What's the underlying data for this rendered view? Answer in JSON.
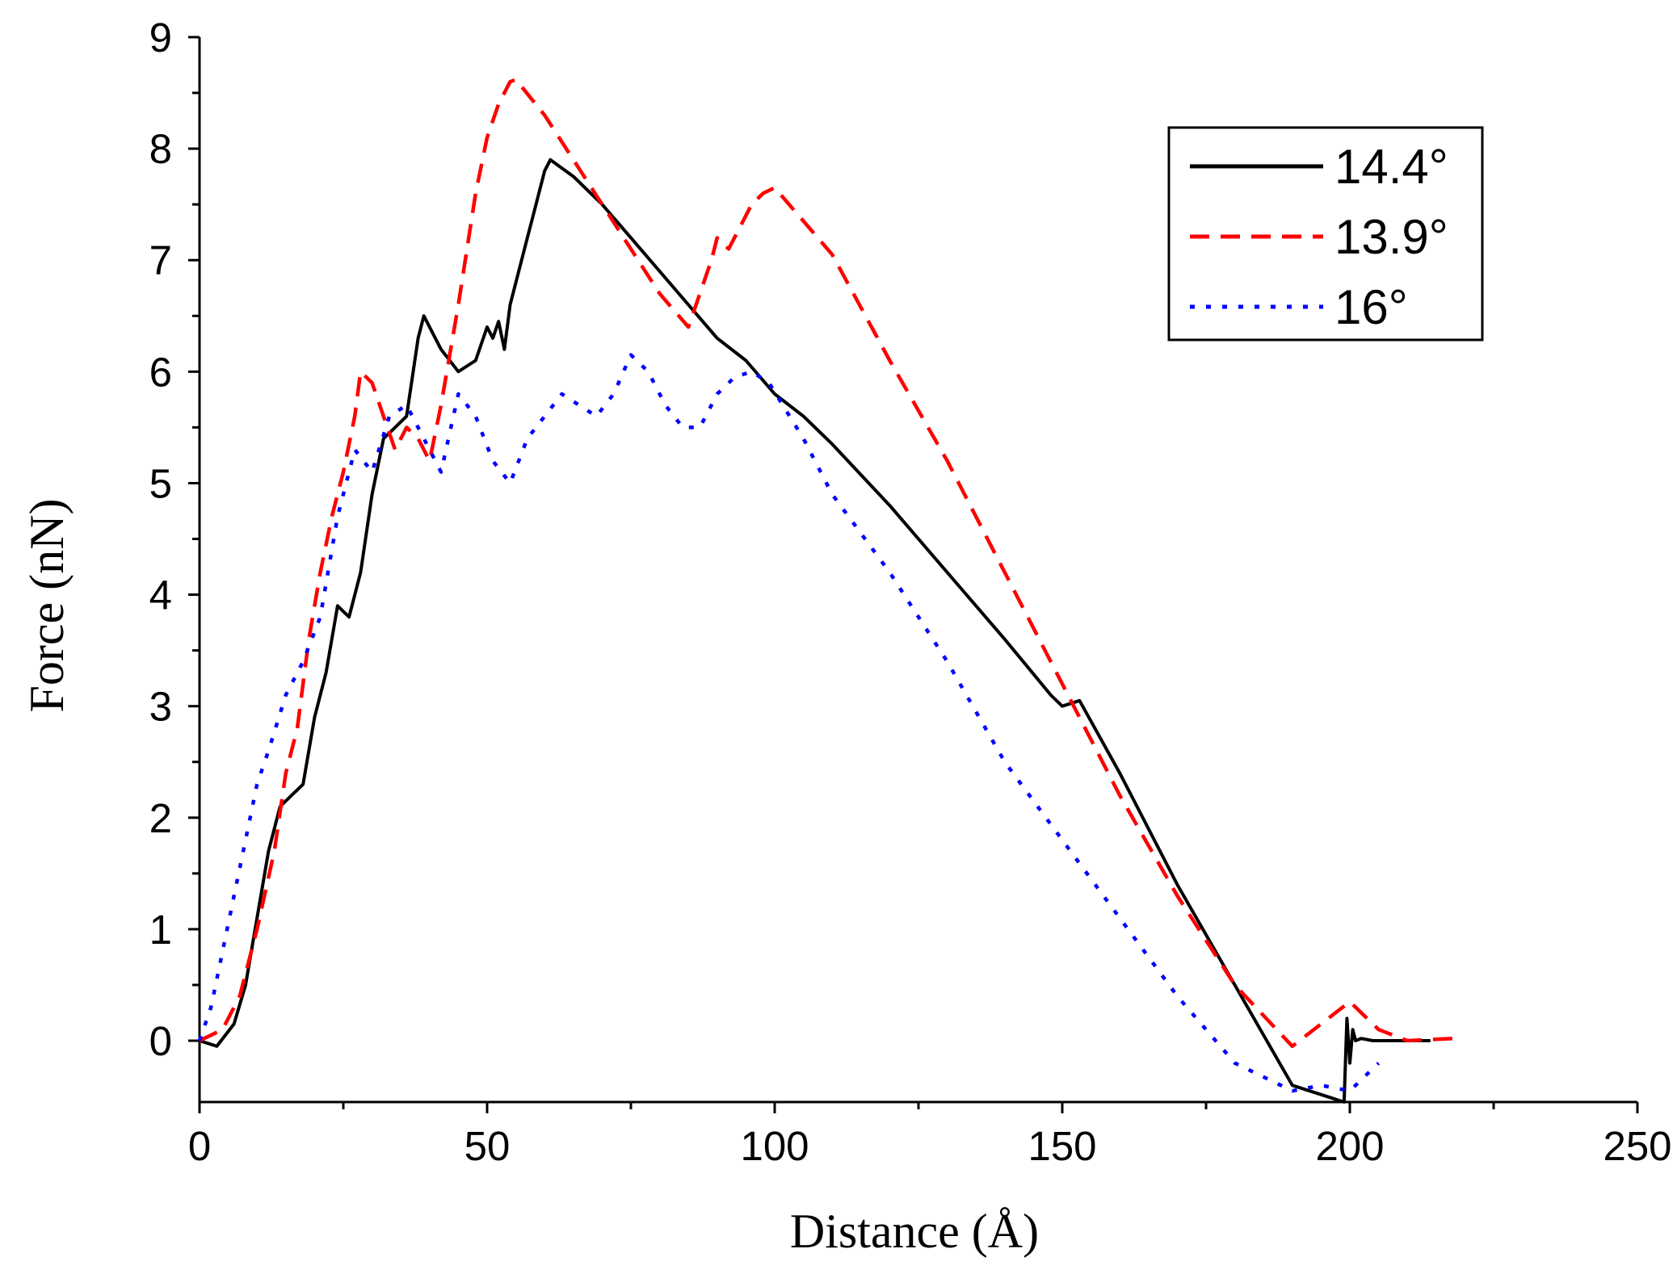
{
  "chart_data": {
    "type": "line",
    "title": "",
    "xlabel": "Distance (Å)",
    "ylabel": "Force (nN)",
    "xlim": [
      0,
      250
    ],
    "ylim": [
      -0.55,
      9
    ],
    "xticks": [
      0,
      50,
      100,
      150,
      200,
      250
    ],
    "xtick_labels": [
      "0",
      "50",
      "100",
      "150",
      "200",
      "250"
    ],
    "yticks": [
      0,
      1,
      2,
      3,
      4,
      5,
      6,
      7,
      8,
      9
    ],
    "ytick_labels": [
      "0",
      "1",
      "2",
      "3",
      "4",
      "5",
      "6",
      "7",
      "8",
      "9"
    ],
    "grid": false,
    "legend_position": "top-right",
    "series": [
      {
        "name": "14.4°",
        "color": "#000000",
        "style": "solid",
        "x": [
          0,
          3,
          6,
          8,
          10,
          12,
          14,
          16,
          18,
          20,
          22,
          24,
          26,
          28,
          30,
          32,
          34,
          36,
          38,
          39,
          42,
          45,
          48,
          50,
          51,
          52,
          53,
          54,
          55,
          56,
          57,
          58,
          59,
          60,
          61,
          65,
          70,
          75,
          80,
          85,
          90,
          95,
          100,
          105,
          110,
          120,
          130,
          140,
          148,
          150,
          153,
          160,
          170,
          180,
          190,
          199,
          199.5,
          200,
          200.5,
          201,
          202,
          204,
          206,
          208,
          210,
          214
        ],
        "y": [
          0,
          -0.05,
          0.15,
          0.5,
          1.1,
          1.7,
          2.1,
          2.2,
          2.3,
          2.9,
          3.3,
          3.9,
          3.8,
          4.2,
          4.9,
          5.4,
          5.5,
          5.6,
          6.3,
          6.5,
          6.2,
          6.0,
          6.1,
          6.4,
          6.3,
          6.45,
          6.2,
          6.6,
          6.8,
          7.0,
          7.2,
          7.4,
          7.6,
          7.8,
          7.9,
          7.75,
          7.5,
          7.2,
          6.9,
          6.6,
          6.3,
          6.1,
          5.8,
          5.6,
          5.35,
          4.8,
          4.2,
          3.6,
          3.1,
          3.0,
          3.05,
          2.4,
          1.4,
          0.5,
          -0.4,
          -0.55,
          0.2,
          -0.2,
          0.1,
          0.0,
          0.02,
          0.0,
          0.0,
          0.0,
          0.0,
          0.0
        ]
      },
      {
        "name": "13.9°",
        "color": "#ff0000",
        "style": "dashed",
        "x": [
          0,
          4,
          7,
          10,
          13,
          15,
          17,
          19,
          21,
          23,
          25,
          27,
          28,
          30,
          32,
          34,
          36,
          38,
          40,
          42,
          45,
          48,
          50,
          52,
          54,
          55,
          60,
          65,
          70,
          75,
          80,
          85,
          87,
          89,
          90,
          92,
          94,
          96,
          98,
          100,
          110,
          120,
          130,
          140,
          150,
          160,
          170,
          180,
          190,
          200,
          205,
          210,
          218
        ],
        "y": [
          0,
          0.1,
          0.4,
          1.0,
          1.7,
          2.4,
          2.8,
          3.6,
          4.2,
          4.7,
          5.1,
          5.6,
          6.0,
          5.9,
          5.6,
          5.3,
          5.5,
          5.4,
          5.2,
          5.7,
          6.6,
          7.6,
          8.1,
          8.4,
          8.6,
          8.62,
          8.3,
          7.9,
          7.5,
          7.1,
          6.7,
          6.4,
          6.7,
          7.0,
          7.2,
          7.1,
          7.3,
          7.5,
          7.6,
          7.65,
          7.05,
          6.1,
          5.2,
          4.2,
          3.2,
          2.2,
          1.3,
          0.5,
          -0.05,
          0.35,
          0.1,
          0.0,
          0.02
        ]
      },
      {
        "name": "16°",
        "color": "#0000ff",
        "style": "dotted",
        "x": [
          0,
          2,
          4,
          6,
          8,
          10,
          12,
          15,
          18,
          21,
          24,
          27,
          30,
          33,
          36,
          39,
          42,
          45,
          48,
          51,
          54,
          57,
          60,
          63,
          66,
          69,
          72,
          75,
          78,
          81,
          84,
          87,
          90,
          93,
          96,
          99,
          105,
          110,
          120,
          130,
          140,
          150,
          160,
          170,
          180,
          190,
          195,
          200,
          205
        ],
        "y": [
          0,
          0.3,
          0.8,
          1.3,
          1.8,
          2.3,
          2.6,
          3.1,
          3.4,
          3.8,
          4.7,
          5.3,
          5.1,
          5.6,
          5.7,
          5.4,
          5.1,
          5.8,
          5.6,
          5.2,
          5.0,
          5.4,
          5.6,
          5.8,
          5.7,
          5.6,
          5.8,
          6.15,
          6.0,
          5.7,
          5.5,
          5.5,
          5.8,
          5.95,
          6.0,
          5.9,
          5.4,
          4.9,
          4.2,
          3.4,
          2.5,
          1.8,
          1.1,
          0.4,
          -0.2,
          -0.45,
          -0.4,
          -0.45,
          -0.2
        ]
      }
    ]
  },
  "legend": {
    "items": [
      {
        "label": "14.4°",
        "color": "#000000",
        "style": "solid"
      },
      {
        "label": "13.9°",
        "color": "#ff0000",
        "style": "dashed"
      },
      {
        "label": "16°",
        "color": "#0000ff",
        "style": "dotted"
      }
    ]
  }
}
